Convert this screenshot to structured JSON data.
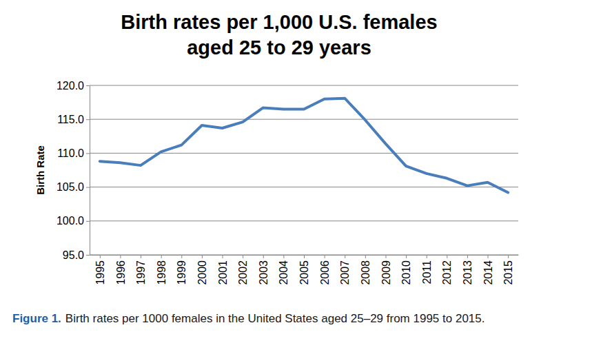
{
  "chart_data": {
    "type": "line",
    "title": [
      "Birth rates per 1,000 U.S. females",
      "aged 25 to 29 years"
    ],
    "y_label": "Birth Rate",
    "caption": {
      "label": "Figure 1.",
      "text": "Birth rates per 1000 females in the United States aged 25–29 from 1995 to 2015."
    },
    "categories": [
      "1995",
      "1996",
      "1997",
      "1998",
      "1999",
      "2000",
      "2001",
      "2002",
      "2003",
      "2004",
      "2005",
      "2006",
      "2007",
      "2008",
      "2009",
      "2010",
      "2011",
      "2012",
      "2013",
      "2014",
      "2015"
    ],
    "values": [
      108.8,
      108.6,
      108.2,
      110.2,
      111.2,
      114.1,
      113.7,
      114.6,
      116.7,
      116.5,
      116.5,
      118.0,
      118.1,
      114.9,
      111.4,
      108.1,
      107.0,
      106.3,
      105.2,
      105.7,
      104.2
    ],
    "color": "#4a7ebb",
    "ylim": [
      95,
      120
    ],
    "yticks": [
      {
        "value": 95,
        "label": "95.0"
      },
      {
        "value": 100,
        "label": "100.0"
      },
      {
        "value": 105,
        "label": "105.0"
      },
      {
        "value": 110,
        "label": "110.0"
      },
      {
        "value": 115,
        "label": "115.0"
      },
      {
        "value": 120,
        "label": "120.0"
      }
    ],
    "grid": true
  }
}
